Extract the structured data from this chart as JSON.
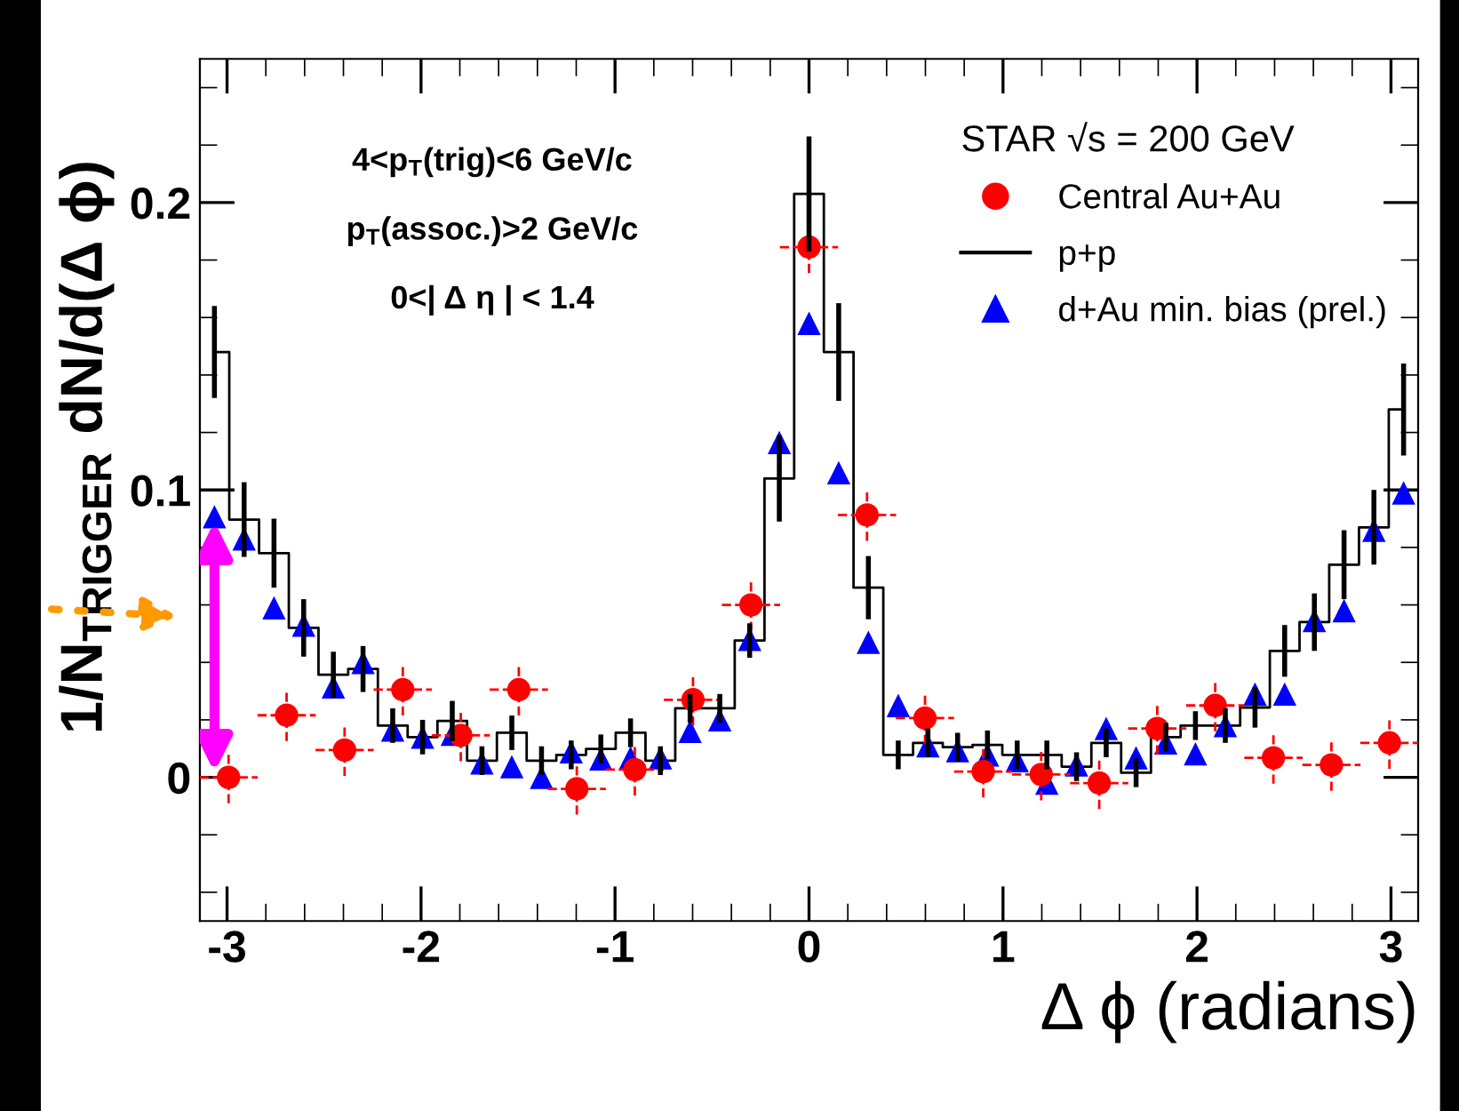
{
  "chart_data": {
    "type": "scatter",
    "xlabel": "Δ ϕ (radians)",
    "ylabel": "1/N$_{TRIGGER}$ dN/d(Δ ϕ)",
    "legend_title": "STAR √s = 200 GeV",
    "annotations": [
      "4<p$_{T}$(trig)<6 GeV/c",
      "p$_{T}$(assoc.)>2 GeV/c",
      "0<| Δ η | < 1.4"
    ],
    "xlim": [
      -3.14,
      3.14
    ],
    "ylim": [
      -0.05,
      0.25
    ],
    "xticks": [
      -3,
      -2,
      -1,
      0,
      1,
      2,
      3
    ],
    "yticks": [
      0,
      0.1,
      0.2
    ],
    "grid": false,
    "legend": "top right",
    "series": [
      {
        "name": "Central Au+Au",
        "marker": "circle",
        "color": "#ff0000",
        "x": [
          -2.992,
          -2.693,
          -2.394,
          -2.094,
          -1.795,
          -1.496,
          -1.197,
          -0.898,
          -0.598,
          -0.299,
          0,
          0.299,
          0.598,
          0.898,
          1.197,
          1.496,
          1.795,
          2.094,
          2.394,
          2.693,
          2.992
        ],
        "values": [
          0.0,
          0.0216,
          0.0095,
          0.0305,
          0.0146,
          0.0305,
          -0.004,
          0.0027,
          0.027,
          0.06,
          0.1845,
          0.0913,
          0.0206,
          0.002,
          0.001,
          -0.002,
          0.017,
          0.025,
          0.0068,
          0.0043,
          0.012
        ],
        "errors": [
          0.009,
          0.009,
          0.009,
          0.009,
          0.009,
          0.009,
          0.009,
          0.009,
          0.009,
          0.009,
          0.009,
          0.009,
          0.009,
          0.009,
          0.009,
          0.009,
          0.009,
          0.009,
          0.009,
          0.009,
          0.009
        ],
        "xerrors": [
          0.15,
          0.15,
          0.15,
          0.15,
          0.15,
          0.15,
          0.15,
          0.15,
          0.15,
          0.15,
          0.15,
          0.15,
          0.15,
          0.15,
          0.15,
          0.15,
          0.15,
          0.15,
          0.15,
          0.15,
          0.15
        ],
        "line_style": "dashed"
      },
      {
        "name": "p+p",
        "type": "step",
        "marker": "none",
        "color": "#000000",
        "x": [
          -3.065,
          -2.912,
          -2.758,
          -2.605,
          -2.452,
          -2.299,
          -2.146,
          -1.992,
          -1.839,
          -1.686,
          -1.532,
          -1.379,
          -1.226,
          -1.073,
          -0.92,
          -0.766,
          -0.613,
          -0.46,
          -0.306,
          -0.153,
          0,
          0.153,
          0.306,
          0.46,
          0.613,
          0.766,
          0.92,
          1.073,
          1.226,
          1.379,
          1.532,
          1.686,
          1.839,
          1.992,
          2.146,
          2.299,
          2.452,
          2.605,
          2.758,
          2.912,
          3.065
        ],
        "values": [
          0.148,
          0.0897,
          0.078,
          0.052,
          0.0357,
          0.0377,
          0.018,
          0.014,
          0.0196,
          0.0058,
          0.0155,
          0.0058,
          0.0078,
          0.0099,
          0.0155,
          0.0058,
          0.024,
          0.024,
          0.0476,
          0.104,
          0.203,
          0.148,
          0.066,
          0.0078,
          0.012,
          0.0105,
          0.0113,
          0.0078,
          0.0078,
          0.0037,
          0.012,
          0.0016,
          0.014,
          0.018,
          0.018,
          0.0243,
          0.044,
          0.054,
          0.074,
          0.087,
          0.128
        ],
        "errors": [
          0.016,
          0.013,
          0.012,
          0.01,
          0.008,
          0.008,
          0.006,
          0.006,
          0.007,
          0.005,
          0.006,
          0.005,
          0.005,
          0.005,
          0.005,
          0.005,
          0.005,
          0.005,
          0.006,
          0.015,
          0.02,
          0.017,
          0.011,
          0.005,
          0.005,
          0.005,
          0.005,
          0.005,
          0.005,
          0.005,
          0.005,
          0.005,
          0.005,
          0.005,
          0.006,
          0.007,
          0.009,
          0.01,
          0.012,
          0.013,
          0.016
        ],
        "line_style": "solid"
      },
      {
        "name": "d+Au min. bias (prel.)",
        "type": "scatter",
        "marker": "triangle",
        "color": "#0000ff",
        "x": [
          -3.065,
          -2.912,
          -2.758,
          -2.605,
          -2.452,
          -2.299,
          -2.146,
          -1.992,
          -1.839,
          -1.686,
          -1.532,
          -1.379,
          -1.226,
          -1.073,
          -0.92,
          -0.766,
          -0.613,
          -0.46,
          -0.306,
          -0.153,
          0,
          0.153,
          0.306,
          0.46,
          0.613,
          0.766,
          0.92,
          1.073,
          1.226,
          1.379,
          1.532,
          1.686,
          1.839,
          1.992,
          2.146,
          2.299,
          2.452,
          2.605,
          2.758,
          2.912,
          3.065
        ],
        "values": [
          0.0907,
          0.083,
          0.059,
          0.053,
          0.0315,
          0.04,
          0.0165,
          0.014,
          0.015,
          0.005,
          0.0037,
          0.0,
          0.0089,
          0.0064,
          0.0068,
          0.0068,
          0.016,
          0.02,
          0.048,
          0.1165,
          0.158,
          0.106,
          0.047,
          0.025,
          0.011,
          0.0093,
          0.0078,
          0.0058,
          -0.002,
          0.0043,
          0.017,
          0.0068,
          0.012,
          0.0082,
          0.018,
          0.029,
          0.029,
          0.0546,
          0.058,
          0.086,
          0.099
        ]
      }
    ]
  }
}
